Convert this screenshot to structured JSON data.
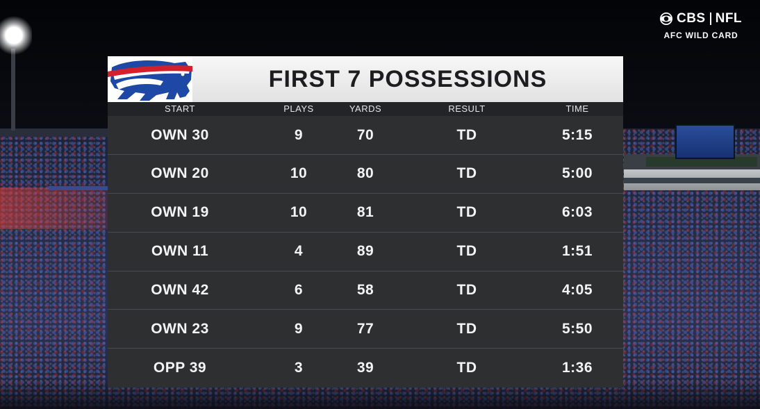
{
  "network": {
    "brand_left": "CBS",
    "brand_right": "NFL",
    "subtitle": "AFC WILD CARD",
    "icon": "cbs-eye-icon"
  },
  "team_logo": {
    "icon": "buffalo-bills-logo",
    "colors": {
      "red": "#d4202c",
      "blue": "#1e48a6",
      "white": "#ffffff"
    }
  },
  "table": {
    "title": "FIRST 7 POSSESSIONS",
    "columns": [
      "START",
      "PLAYS",
      "YARDS",
      "RESULT",
      "TIME"
    ],
    "rows": [
      [
        "OWN 30",
        "9",
        "70",
        "TD",
        "5:15"
      ],
      [
        "OWN 20",
        "10",
        "80",
        "TD",
        "5:00"
      ],
      [
        "OWN 19",
        "10",
        "81",
        "TD",
        "6:03"
      ],
      [
        "OWN 11",
        "4",
        "89",
        "TD",
        "1:51"
      ],
      [
        "OWN 42",
        "6",
        "58",
        "TD",
        "4:05"
      ],
      [
        "OWN 23",
        "9",
        "77",
        "TD",
        "5:50"
      ],
      [
        "OPP 39",
        "3",
        "39",
        "TD",
        "1:36"
      ]
    ]
  },
  "colors": {
    "row_bg": "#2e2f31",
    "header_bg": "#232427",
    "title_bg": "#eeeeee",
    "text": "#f4f4f4"
  }
}
